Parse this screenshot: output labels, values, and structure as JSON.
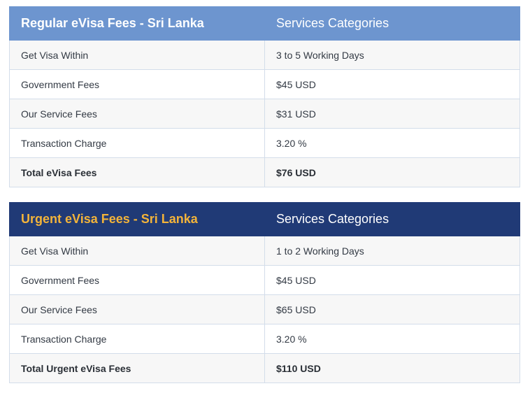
{
  "regular": {
    "title": "Regular eVisa Fees - Sri Lanka",
    "category_header": "Services Categories",
    "rows": [
      {
        "label": "Get Visa Within",
        "value": "3 to 5 Working Days"
      },
      {
        "label": "Government Fees",
        "value": "$45 USD"
      },
      {
        "label": "Our Service Fees",
        "value": "$31 USD"
      },
      {
        "label": "Transaction Charge",
        "value": "3.20 %"
      }
    ],
    "total": {
      "label": "Total eVisa Fees",
      "value": "$76 USD"
    }
  },
  "urgent": {
    "title": "Urgent eVisa Fees - Sri Lanka",
    "category_header": "Services Categories",
    "rows": [
      {
        "label": "Get Visa Within",
        "value": "1 to 2 Working Days"
      },
      {
        "label": "Government Fees",
        "value": "$45 USD"
      },
      {
        "label": "Our Service Fees",
        "value": "$65 USD"
      },
      {
        "label": "Transaction Charge",
        "value": "3.20 %"
      }
    ],
    "total": {
      "label": "Total Urgent eVisa Fees",
      "value": "$110 USD"
    }
  },
  "colors": {
    "regular_header_bg": "#6d95cf",
    "urgent_header_bg": "#203a76",
    "urgent_title_text": "#f3b43a",
    "row_alt_bg": "#f7f7f7",
    "border": "#d3ddea"
  }
}
